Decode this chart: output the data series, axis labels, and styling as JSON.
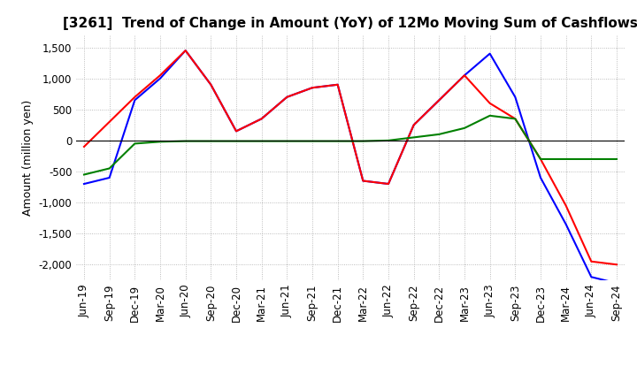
{
  "title": "[3261]  Trend of Change in Amount (YoY) of 12Mo Moving Sum of Cashflows",
  "ylabel": "Amount (million yen)",
  "x_labels": [
    "Jun-19",
    "Sep-19",
    "Dec-19",
    "Mar-20",
    "Jun-20",
    "Sep-20",
    "Dec-20",
    "Mar-21",
    "Jun-21",
    "Sep-21",
    "Dec-21",
    "Mar-22",
    "Jun-22",
    "Sep-22",
    "Dec-22",
    "Mar-23",
    "Jun-23",
    "Sep-23",
    "Dec-23",
    "Mar-24",
    "Jun-24",
    "Sep-24"
  ],
  "operating": [
    -100,
    300,
    700,
    1050,
    1450,
    900,
    150,
    350,
    700,
    850,
    900,
    -650,
    -700,
    250,
    650,
    1050,
    600,
    350,
    -300,
    -1050,
    -1950,
    -2000
  ],
  "investing": [
    -550,
    -450,
    -50,
    -20,
    -10,
    -10,
    -10,
    -10,
    -10,
    -10,
    -10,
    -10,
    0,
    50,
    100,
    200,
    400,
    350,
    -300,
    -300,
    -300,
    -300
  ],
  "free": [
    -700,
    -600,
    650,
    1000,
    1450,
    900,
    150,
    350,
    700,
    850,
    900,
    -650,
    -700,
    250,
    650,
    1050,
    1400,
    700,
    -600,
    -1350,
    -2200,
    -2300
  ],
  "ylim": [
    -2250,
    1700
  ],
  "yticks": [
    -2000,
    -1500,
    -1000,
    -500,
    0,
    500,
    1000,
    1500
  ],
  "operating_color": "#ff0000",
  "investing_color": "#008000",
  "free_color": "#0000ff",
  "background_color": "#ffffff",
  "grid_color": "#aaaaaa",
  "title_fontsize": 11,
  "label_fontsize": 9,
  "tick_fontsize": 8.5
}
